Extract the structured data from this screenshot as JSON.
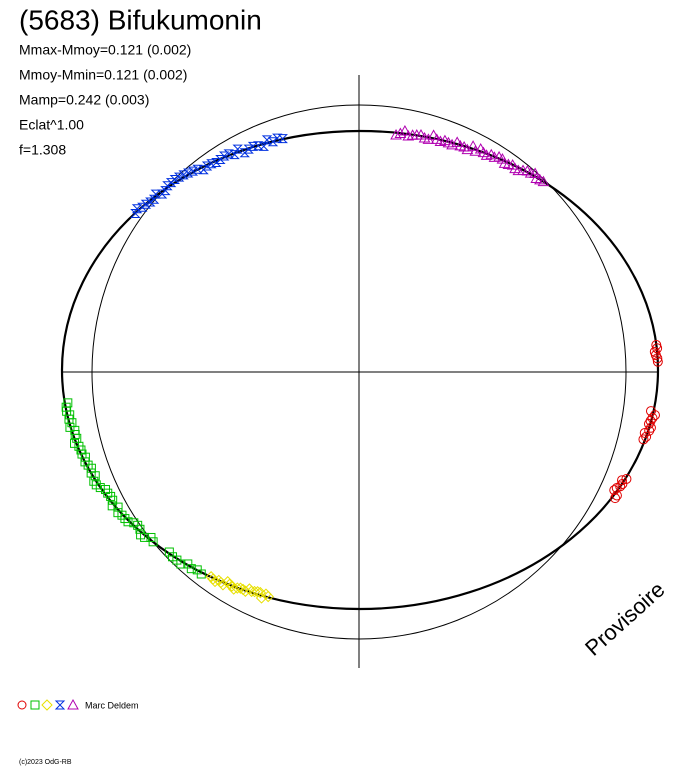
{
  "header": {
    "title": "(5683) Bifukumonin"
  },
  "stats": [
    "Mmax-Mmoy=0.121 (0.002)",
    "Mmoy-Mmin=0.121 (0.002)",
    "Mamp=0.242 (0.003)",
    "Eclat^1.00",
    "f=1.308"
  ],
  "watermark": "Provisoire",
  "legend": {
    "author": "Marc Deldem"
  },
  "footer": {
    "copyright": "(c)2023 OdG-RB"
  }
}
